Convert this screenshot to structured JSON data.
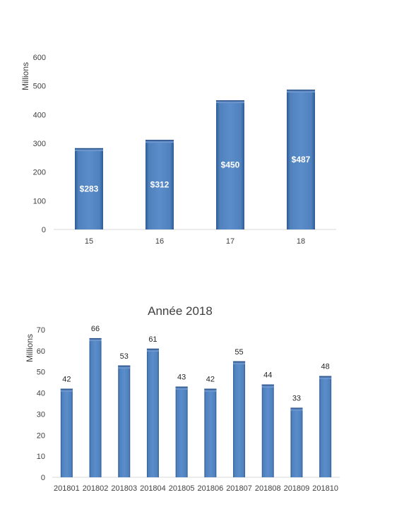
{
  "chart_data": [
    {
      "type": "bar",
      "title": "",
      "ylabel": "Millions",
      "xlabel": "",
      "categories": [
        "15",
        "16",
        "17",
        "18"
      ],
      "values": [
        283,
        312,
        450,
        487
      ],
      "data_labels": [
        "$283",
        "$312",
        "$450",
        "$487"
      ],
      "data_label_position": "inside",
      "ylim": [
        0,
        600
      ],
      "yticks": [
        "0",
        "100",
        "200",
        "300",
        "400",
        "500",
        "600"
      ],
      "grid": false,
      "bar_color": "#4F81BD"
    },
    {
      "type": "bar",
      "title": "Année 2018",
      "ylabel": "Millions",
      "xlabel": "",
      "categories": [
        "201801",
        "201802",
        "201803",
        "201804",
        "201805",
        "201806",
        "201807",
        "201808",
        "201809",
        "201810"
      ],
      "values": [
        42,
        66,
        53,
        61,
        43,
        42,
        55,
        44,
        33,
        48
      ],
      "data_labels": [
        "42",
        "66",
        "53",
        "61",
        "43",
        "42",
        "55",
        "44",
        "33",
        "48"
      ],
      "data_label_position": "outside",
      "ylim": [
        0,
        70
      ],
      "yticks": [
        "0",
        "10",
        "20",
        "30",
        "40",
        "50",
        "60",
        "70"
      ],
      "grid": false,
      "bar_color": "#4F81BD"
    }
  ]
}
